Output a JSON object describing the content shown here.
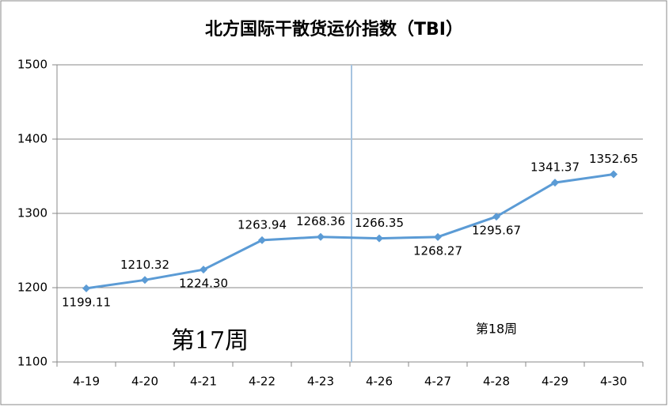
{
  "chart_data": {
    "type": "line",
    "title": "北方国际干散货运价指数（TBI）",
    "categories": [
      "4-19",
      "4-20",
      "4-21",
      "4-22",
      "4-23",
      "4-26",
      "4-27",
      "4-28",
      "4-29",
      "4-30"
    ],
    "series": [
      {
        "color": "#5b9bd5",
        "values": [
          1199.11,
          1210.32,
          1224.3,
          1263.94,
          1268.36,
          1266.35,
          1268.27,
          1295.67,
          1341.37,
          1352.65
        ],
        "value_labels": [
          "1199.11",
          "1210.32",
          "1224.30",
          "1263.94",
          "1268.36",
          "1266.35",
          "1268.27",
          "1295.67",
          "1341.37",
          "1352.65"
        ]
      }
    ],
    "ylim": [
      1100,
      1500
    ],
    "yticks": [
      1100,
      1200,
      1300,
      1400,
      1500
    ],
    "grid": true,
    "annotations": [
      "第17周",
      "第18周"
    ]
  }
}
